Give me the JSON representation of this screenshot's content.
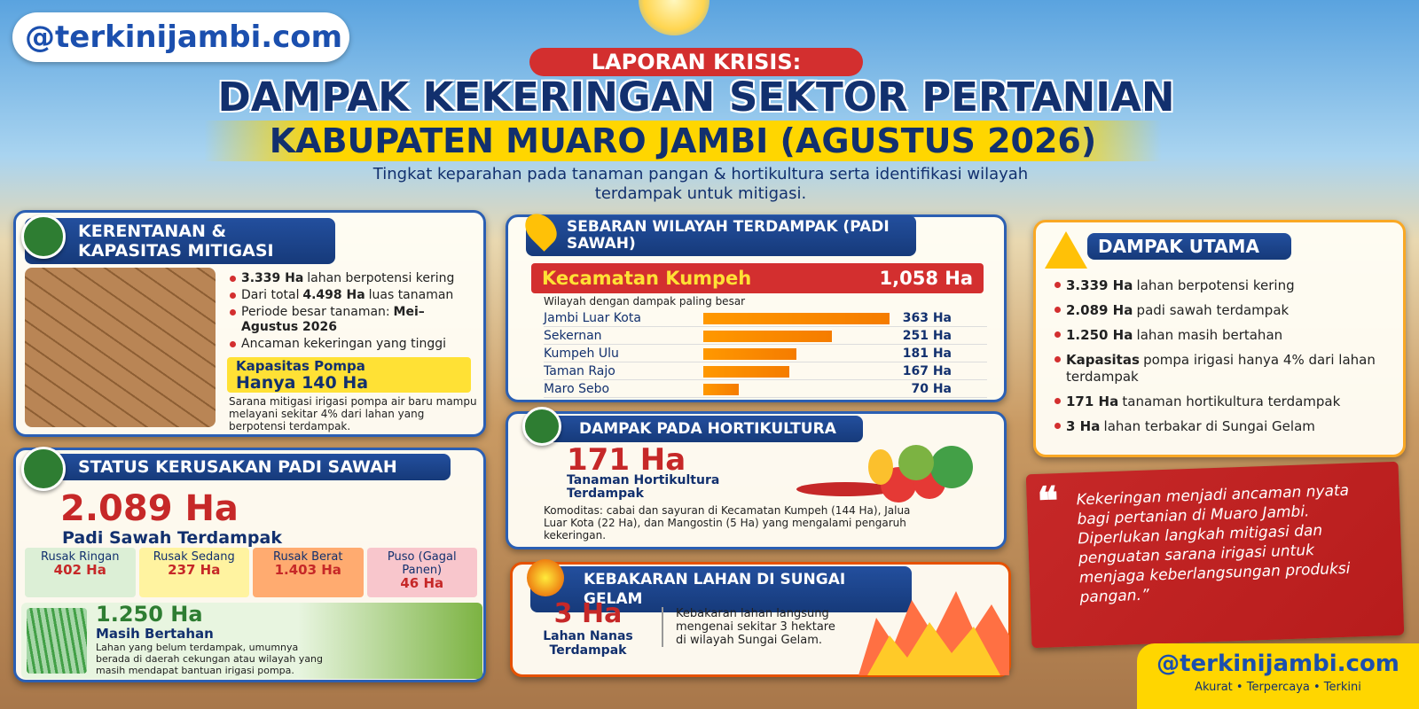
{
  "brand": {
    "logo": "@terkinijambi.com",
    "tagline": "Akurat • Terpercaya • Terkini"
  },
  "header": {
    "kicker": "LAPORAN KRISIS:",
    "title_line1": "DAMPAK KEKERINGAN SEKTOR PERTANIAN",
    "title_line2": "KABUPATEN MUARO JAMBI (AGUSTUS 2026)",
    "subtitle": "Tingkat keparahan pada tanaman pangan & hortikultura serta identifikasi wilayah terdampak untuk mitigasi."
  },
  "kerentanan": {
    "title": "KERENTANAN & KAPASITAS MITIGASI",
    "bullets": [
      {
        "bold": "3.339 Ha",
        "post": "lahan berpotensi kering"
      },
      {
        "pre": "Dari total",
        "bold": "4.498 Ha",
        "post": "luas tanaman"
      },
      {
        "pre": "Periode besar tanaman:",
        "bold": "Mei–Agustus 2026"
      },
      {
        "pre": "Ancaman kekeringan yang tinggi"
      }
    ],
    "pump_label": "Kapasitas Pompa",
    "pump_value": "Hanya 140 Ha",
    "pump_desc": "Sarana mitigasi irigasi pompa air baru mampu melayani sekitar 4% dari lahan yang berpotensi terdampak."
  },
  "status": {
    "title": "STATUS KERUSAKAN PADI SAWAH",
    "total": "2.089 Ha",
    "total_label": "Padi Sawah Terdampak",
    "cells": [
      {
        "label": "Rusak Ringan",
        "value": "402 Ha"
      },
      {
        "label": "Rusak Sedang",
        "value": "237 Ha"
      },
      {
        "label": "Rusak Berat",
        "value": "1.403 Ha"
      },
      {
        "label": "Puso (Gagal Panen)",
        "value": "46 Ha"
      }
    ],
    "survive_value": "1.250 Ha",
    "survive_label": "Masih Bertahan",
    "survive_desc": "Lahan yang belum terdampak, umumnya berada di daerah cekungan atau wilayah yang masih mendapat bantuan irigasi pompa."
  },
  "sebaran": {
    "title": "SEBARAN WILAYAH TERDAMPAK (PADI SAWAH)",
    "top_name": "Kecamatan Kumpeh",
    "top_value": "1,058 Ha",
    "top_note": "Wilayah dengan dampak paling besar",
    "rows": [
      {
        "name": "Jambi Luar Kota",
        "value": 363,
        "value_label": "363 Ha"
      },
      {
        "name": "Sekernan",
        "value": 251,
        "value_label": "251 Ha"
      },
      {
        "name": "Kumpeh Ulu",
        "value": 181,
        "value_label": "181 Ha"
      },
      {
        "name": "Taman Rajo",
        "value": 167,
        "value_label": "167 Ha"
      },
      {
        "name": "Maro Sebo",
        "value": 70,
        "value_label": "70 Ha"
      }
    ]
  },
  "hortikultura": {
    "title": "DAMPAK PADA HORTIKULTURA",
    "value": "171 Ha",
    "label": "Tanaman Hortikultura Terdampak",
    "desc": "Komoditas: cabai dan sayuran di Kecamatan Kumpeh (144 Ha), Jalua Luar Kota (22 Ha), dan Mangostin (5 Ha) yang mengalami pengaruh kekeringan."
  },
  "kebakaran": {
    "title": "KEBAKARAN LAHAN DI SUNGAI GELAM",
    "value": "3 Ha",
    "label": "Lahan Nanas Terdampak",
    "desc": "Kebakaran lahan langsung mengenai sekitar 3 hektare di wilayah Sungai Gelam."
  },
  "dampak": {
    "title": "DAMPAK UTAMA",
    "bullets": [
      {
        "bold": "3.339 Ha",
        "post": "lahan berpotensi kering"
      },
      {
        "bold": "2.089 Ha",
        "post": "padi sawah terdampak"
      },
      {
        "bold": "1.250 Ha",
        "post": "lahan masih bertahan"
      },
      {
        "bold": "Kapasitas",
        "post": "pompa irigasi hanya 4% dari lahan terdampak"
      },
      {
        "bold": "171 Ha",
        "post": "tanaman hortikultura terdampak"
      },
      {
        "bold": "3 Ha",
        "post": "lahan terbakar di Sungai Gelam"
      }
    ]
  },
  "quote": {
    "text": "Kekeringan menjadi ancaman nyata bagi pertanian di Muaro Jambi. Diperlukan langkah mitigasi dan penguatan sarana irigasi untuk menjaga keberlangsungan produksi pangan.”"
  }
}
